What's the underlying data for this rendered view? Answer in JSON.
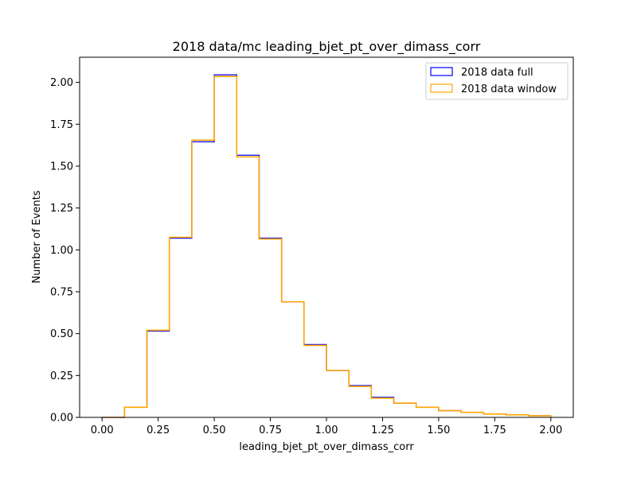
{
  "chart_data": {
    "type": "histogram-step",
    "title": "2018 data/mc leading_bjet_pt_over_dimass_corr",
    "xlabel": "leading_bjet_pt_over_dimass_corr",
    "ylabel": "Number of Events",
    "xlim": [
      -0.1,
      2.1
    ],
    "ylim": [
      0,
      2.15
    ],
    "xticks": [
      0.0,
      0.25,
      0.5,
      0.75,
      1.0,
      1.25,
      1.5,
      1.75,
      2.0
    ],
    "xtick_labels": [
      "0.00",
      "0.25",
      "0.50",
      "0.75",
      "1.00",
      "1.25",
      "1.50",
      "1.75",
      "2.00"
    ],
    "yticks": [
      0.0,
      0.25,
      0.5,
      0.75,
      1.0,
      1.25,
      1.5,
      1.75,
      2.0
    ],
    "ytick_labels": [
      "0.00",
      "0.25",
      "0.50",
      "0.75",
      "1.00",
      "1.25",
      "1.50",
      "1.75",
      "2.00"
    ],
    "bin_edges": [
      0.0,
      0.1,
      0.2,
      0.3,
      0.4,
      0.5,
      0.6,
      0.7,
      0.8,
      0.9,
      1.0,
      1.1,
      1.2,
      1.3,
      1.4,
      1.5,
      1.6,
      1.7,
      1.8,
      1.9,
      2.0
    ],
    "series": [
      {
        "name": "2018 data full",
        "color": "#0000ff",
        "values": [
          0.0,
          0.06,
          0.515,
          1.07,
          1.645,
          2.045,
          1.565,
          1.07,
          0.69,
          0.435,
          0.28,
          0.19,
          0.12,
          0.085,
          0.06,
          0.04,
          0.03,
          0.02,
          0.015,
          0.01
        ]
      },
      {
        "name": "2018 data window",
        "color": "#ffa500",
        "values": [
          0.0,
          0.06,
          0.52,
          1.075,
          1.655,
          2.035,
          1.555,
          1.065,
          0.69,
          0.43,
          0.28,
          0.185,
          0.115,
          0.085,
          0.06,
          0.04,
          0.03,
          0.02,
          0.015,
          0.01
        ]
      }
    ],
    "legend_position": "top-right",
    "grid": false
  }
}
